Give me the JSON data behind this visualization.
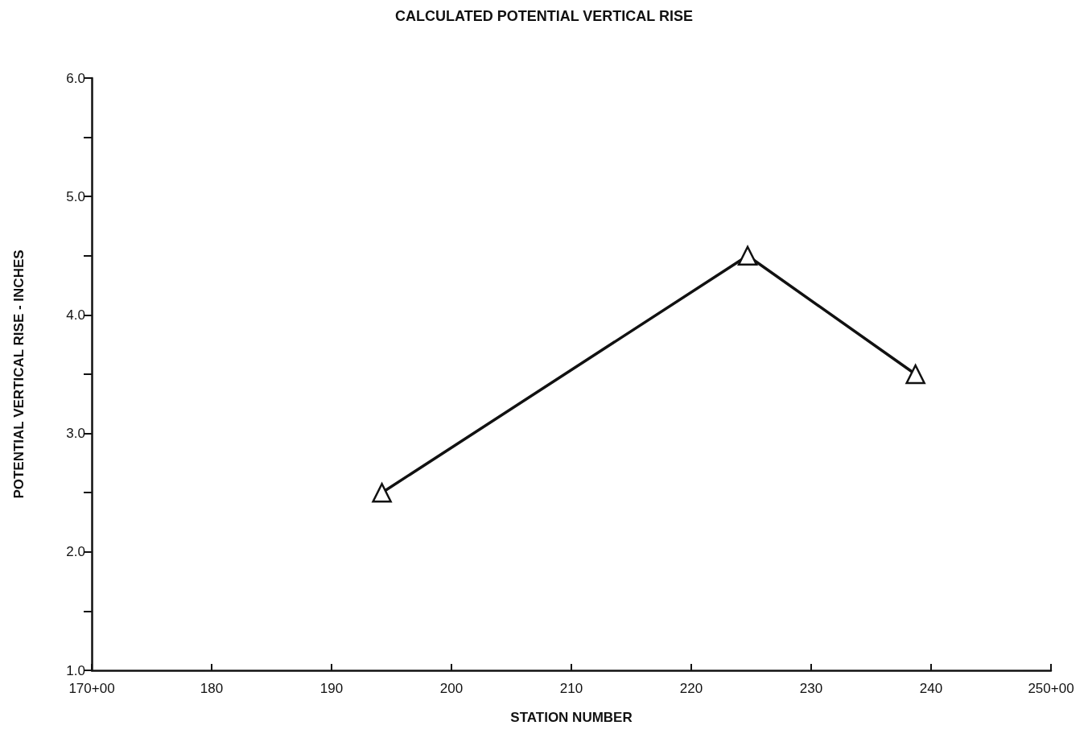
{
  "chart_data": {
    "type": "line",
    "title": "CALCULATED POTENTIAL VERTICAL RISE",
    "xlabel": "STATION NUMBER",
    "ylabel": "POTENTIAL VERTICAL RISE - INCHES",
    "x": [
      194.2,
      224.7,
      238.7
    ],
    "series": [
      {
        "color": "#111111",
        "values": [
          2.5,
          4.5,
          3.5
        ]
      }
    ],
    "xlim": [
      170,
      250
    ],
    "xticks": [
      {
        "value": 170,
        "label": "170+00"
      },
      180,
      190,
      200,
      210,
      220,
      230,
      240,
      {
        "value": 250,
        "label": "250+00"
      }
    ],
    "ylim": [
      1.0,
      6.0
    ],
    "yticks": [
      {
        "value": 1,
        "label": "1.0"
      },
      {
        "value": 1.5,
        "label": null
      },
      {
        "value": 2,
        "label": "2.0"
      },
      {
        "value": 2.5,
        "label": null
      },
      {
        "value": 3,
        "label": "3.0"
      },
      {
        "value": 3.5,
        "label": null
      },
      {
        "value": 4,
        "label": "4.0"
      },
      {
        "value": 4.5,
        "label": null
      },
      {
        "value": 5,
        "label": "5.0"
      },
      {
        "value": 5.5,
        "label": null
      },
      {
        "value": 6,
        "label": "6.0"
      }
    ],
    "marker": "triangle",
    "line_style": "solid",
    "grid": false
  }
}
